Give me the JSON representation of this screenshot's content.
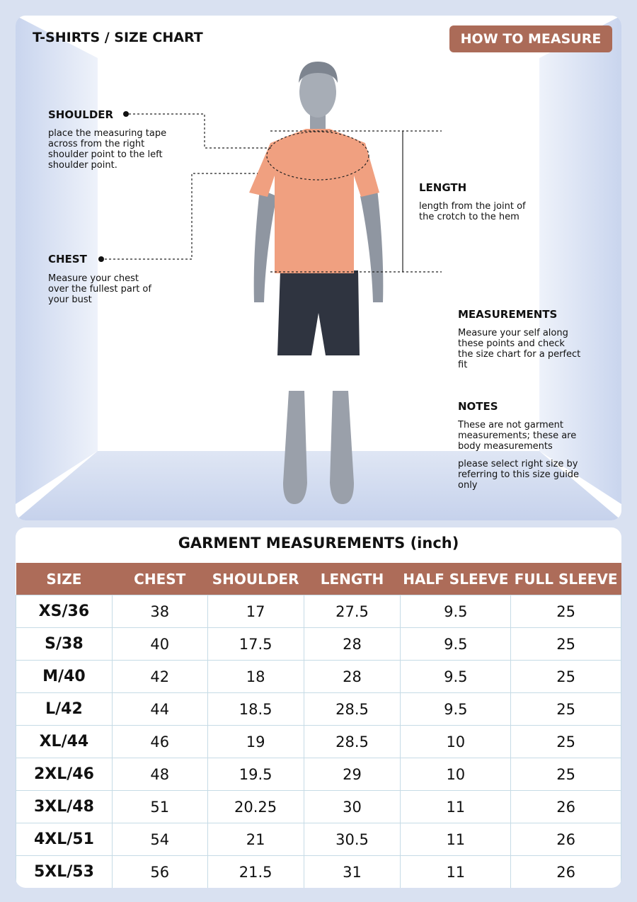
{
  "header": {
    "title": "T-SHIRTS / SIZE CHART",
    "button": "HOW TO MEASURE"
  },
  "annotations": {
    "shoulder": {
      "label": "SHOULDER",
      "text": "place the measuring tape across from the right shoulder point to the left shoulder point."
    },
    "chest": {
      "label": "CHEST",
      "text": "Measure your chest over the fullest part of your bust"
    },
    "length": {
      "label": "LENGTH",
      "text": "length from the joint of the crotch to the hem"
    },
    "measurements": {
      "label": "MEASUREMENTS",
      "text": "Measure your self along these points and check the size chart for a perfect fit"
    },
    "notes": {
      "label": "NOTES",
      "paragraphs": [
        "These are not garment measurements; these are body measurements",
        "please select right size by referring to this size guide only"
      ]
    }
  },
  "table": {
    "title": "GARMENT MEASUREMENTS (inch)",
    "columns": [
      "SIZE",
      "CHEST",
      "SHOULDER",
      "LENGTH",
      "HALF SLEEVE",
      "FULL SLEEVE"
    ],
    "rows": [
      [
        "XS/36",
        38,
        17,
        27.5,
        9.5,
        25
      ],
      [
        "S/38",
        40,
        17.5,
        28,
        9.5,
        25
      ],
      [
        "M/40",
        42,
        18,
        28,
        9.5,
        25
      ],
      [
        "L/42",
        44,
        18.5,
        28.5,
        9.5,
        25
      ],
      [
        "XL/44",
        46,
        19,
        28.5,
        10,
        25
      ],
      [
        "2XL/46",
        48,
        19.5,
        29,
        10,
        25
      ],
      [
        "3XL/48",
        51,
        20.25,
        30,
        11,
        26
      ],
      [
        "4XL/51",
        54,
        21,
        30.5,
        11,
        26
      ],
      [
        "5XL/53",
        56,
        21.5,
        31,
        11,
        26
      ]
    ]
  }
}
